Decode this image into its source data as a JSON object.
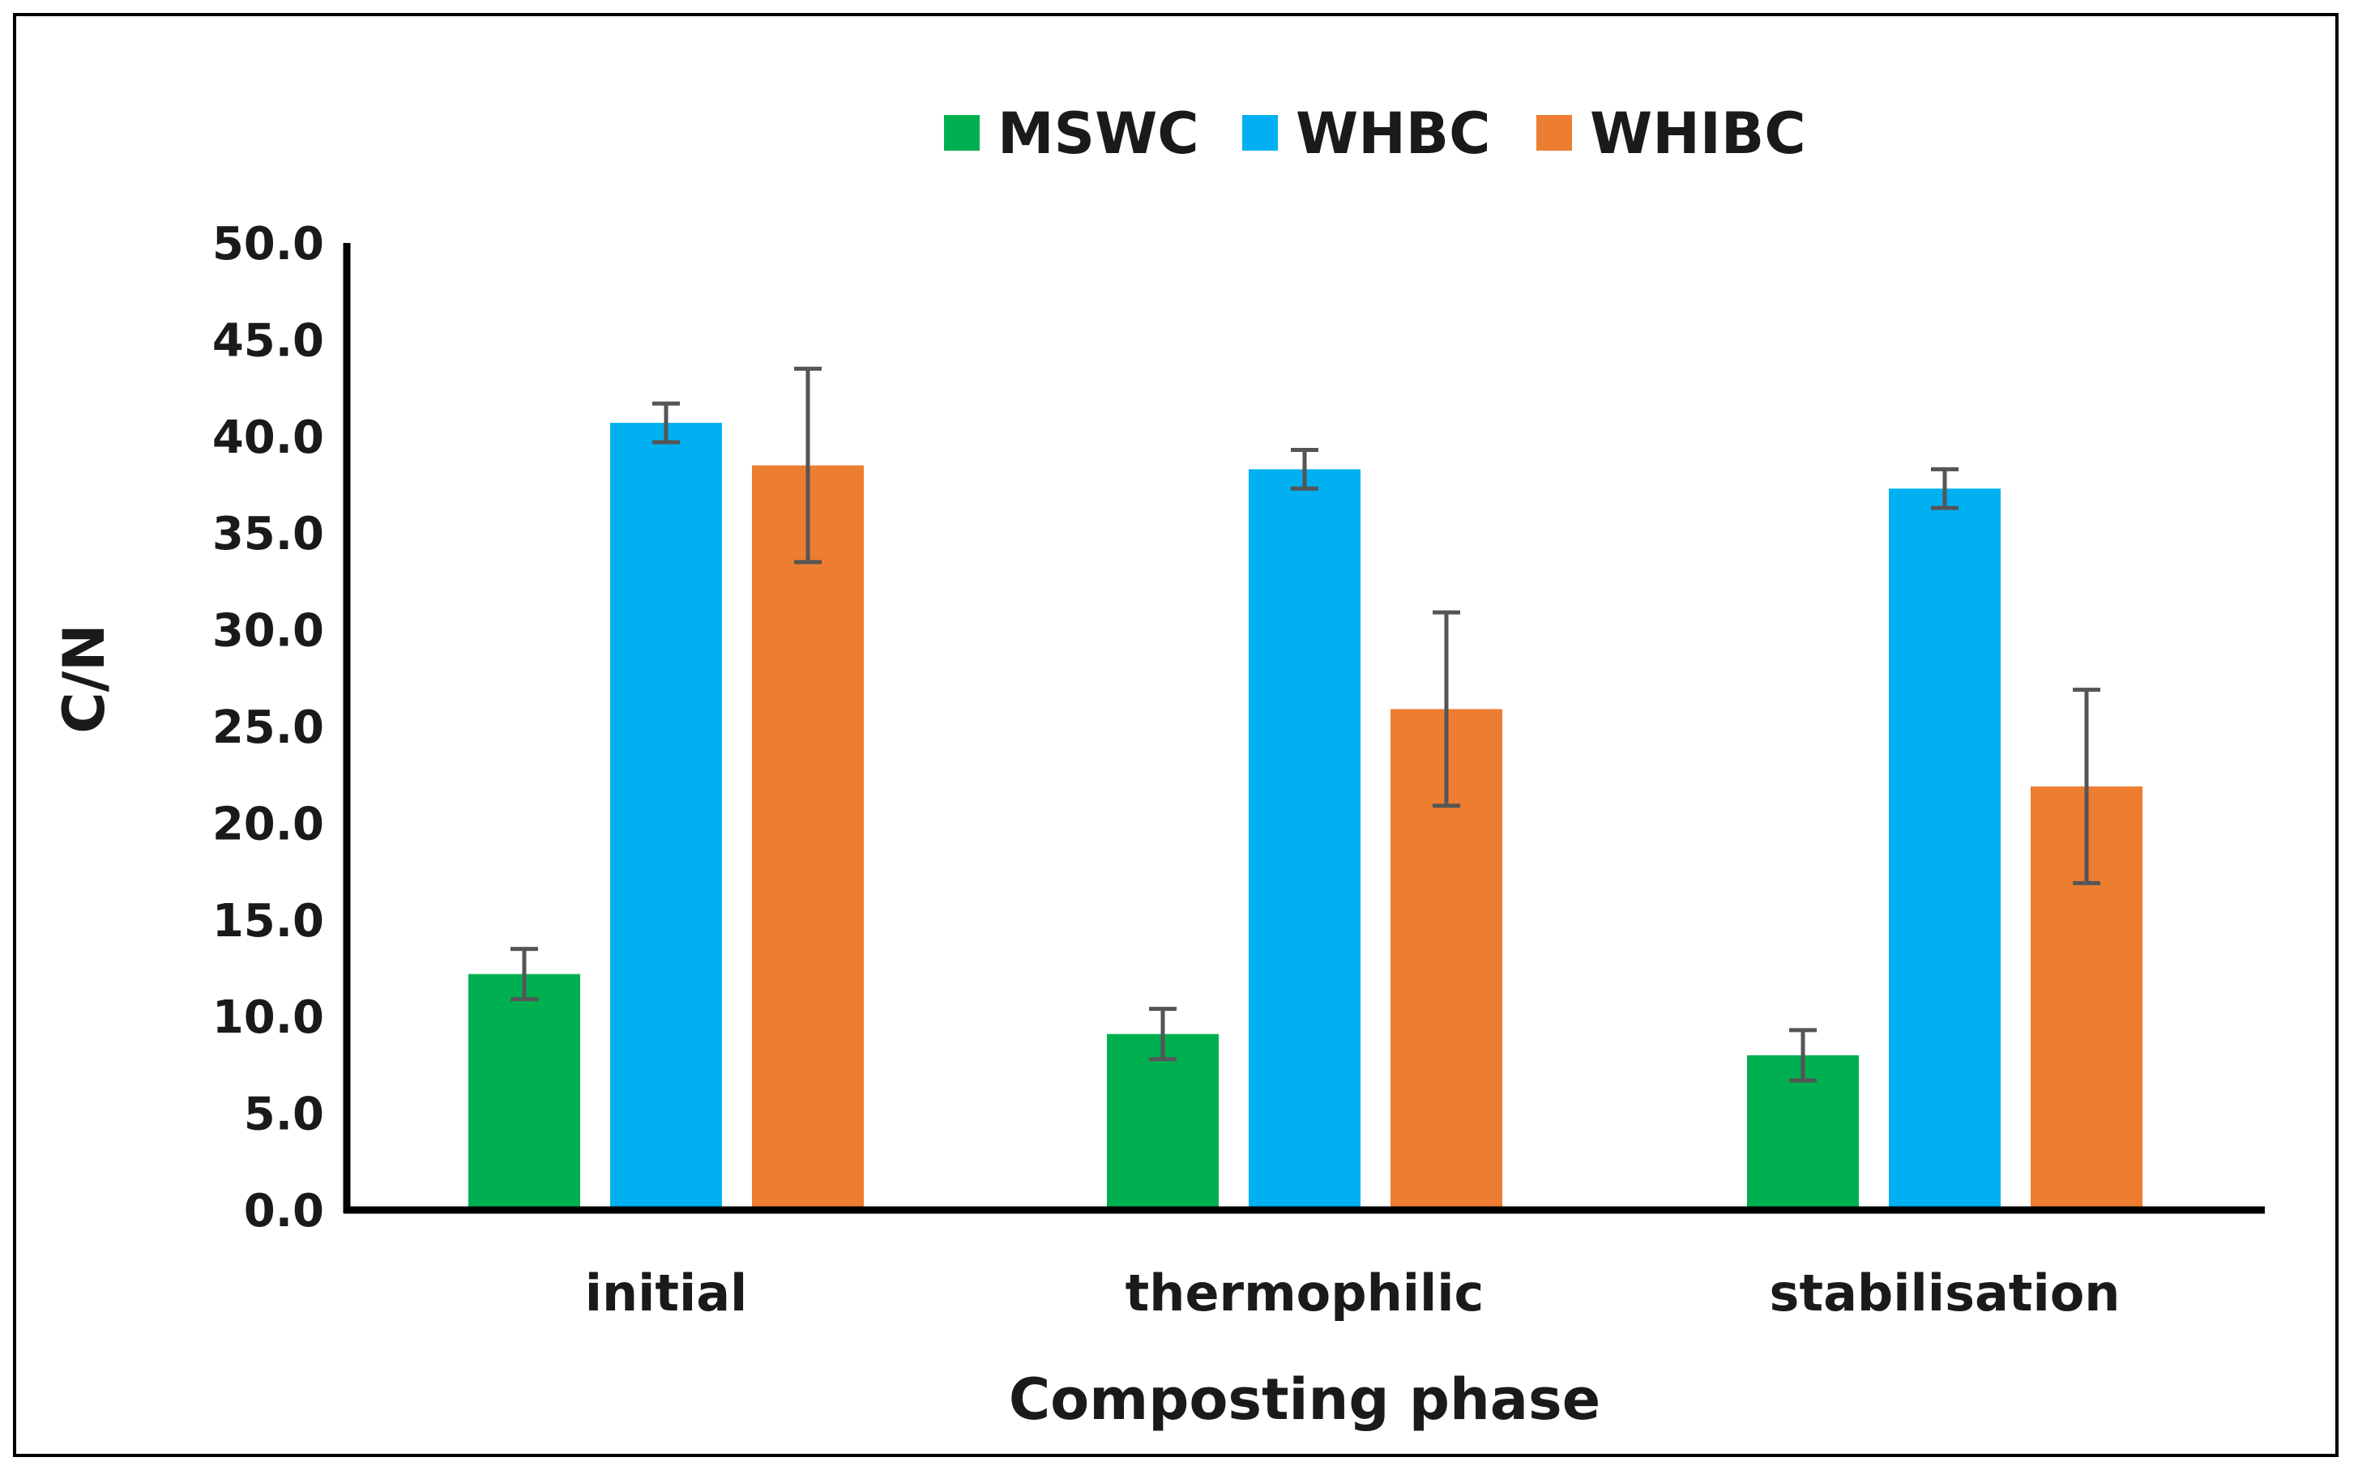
{
  "chart_data": {
    "type": "bar",
    "title": "",
    "xlabel": "Composting phase",
    "ylabel": "C/N",
    "ylim": [
      0,
      50
    ],
    "y_ticks": [
      "0.0",
      "5.0",
      "10.0",
      "15.0",
      "20.0",
      "25.0",
      "30.0",
      "35.0",
      "40.0",
      "45.0",
      "50.0"
    ],
    "y_tick_values": [
      0,
      5,
      10,
      15,
      20,
      25,
      30,
      35,
      40,
      45,
      50
    ],
    "categories": [
      "initial",
      "thermophilic",
      "stabilisation"
    ],
    "legend_position": "top-center",
    "grid": false,
    "series": [
      {
        "name": "MSWC",
        "color": "#00b050",
        "values": [
          12.2,
          9.1,
          8.0
        ],
        "errors": [
          1.3,
          1.3,
          1.3
        ]
      },
      {
        "name": "WHBC",
        "color": "#00b0f0",
        "values": [
          40.7,
          38.3,
          37.3
        ],
        "errors": [
          1.0,
          1.0,
          1.0
        ]
      },
      {
        "name": "WHIBC",
        "color": "#ed7d31",
        "values": [
          38.5,
          25.9,
          21.9
        ],
        "errors": [
          5.0,
          5.0,
          5.0
        ]
      }
    ],
    "error_bar_color": "#555555"
  }
}
